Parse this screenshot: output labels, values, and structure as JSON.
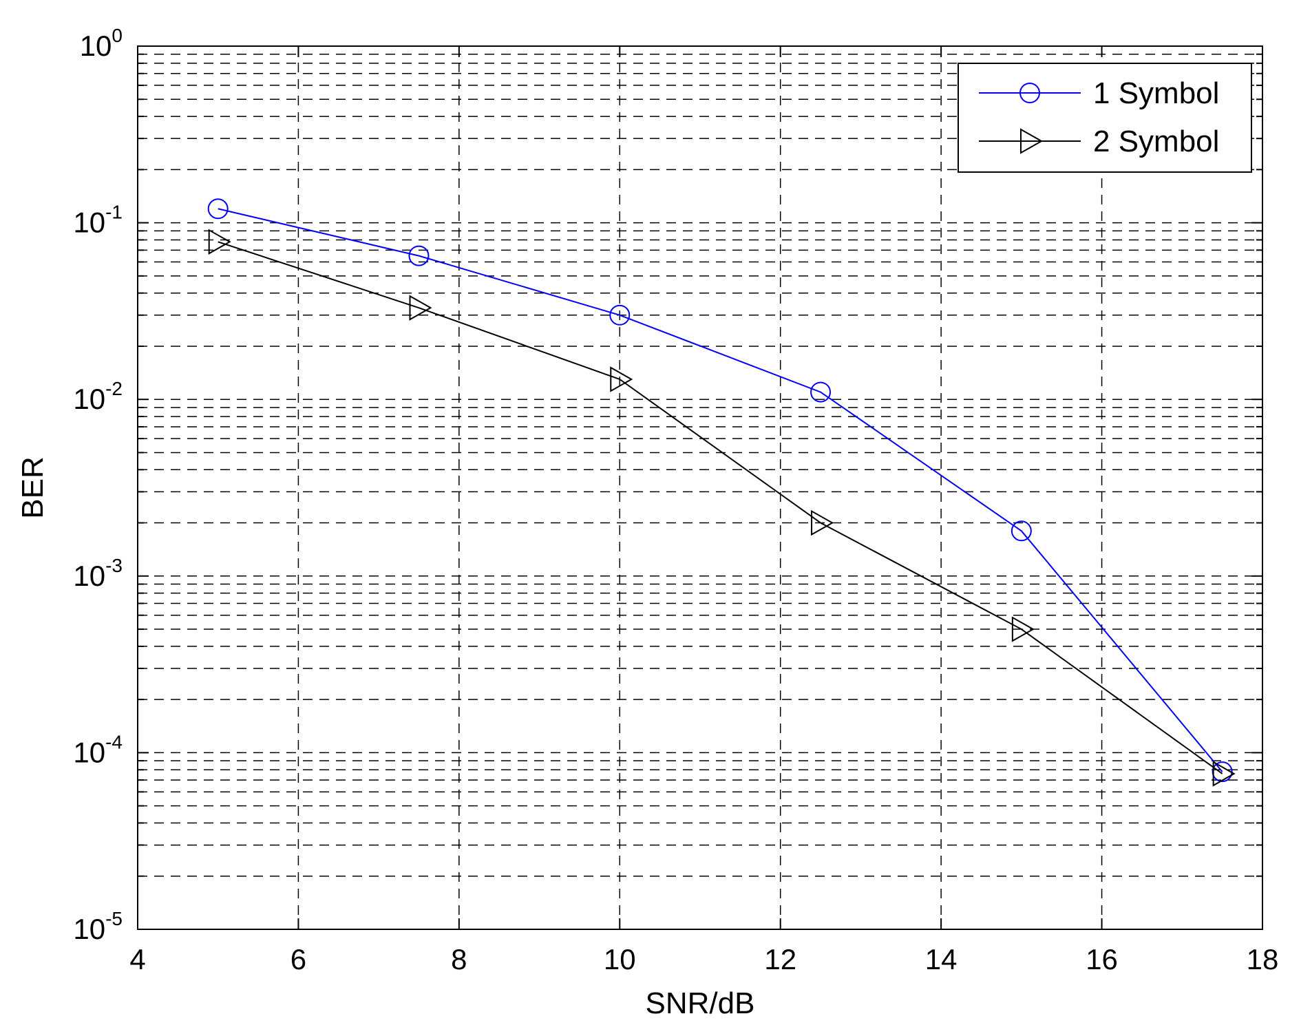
{
  "chart_data": {
    "type": "line",
    "title": "",
    "xlabel": "SNR/dB",
    "ylabel": "BER",
    "xlim": [
      4,
      18
    ],
    "ylim": [
      1e-05,
      1
    ],
    "yscale": "log",
    "grid": true,
    "grid_style": "dashed",
    "legend_position": "top-right",
    "x_ticks": [
      "4",
      "6",
      "8",
      "10",
      "12",
      "14",
      "16",
      "18"
    ],
    "y_ticks": [
      {
        "base": "10",
        "exp": "0"
      },
      {
        "base": "10",
        "exp": "-1"
      },
      {
        "base": "10",
        "exp": "-2"
      },
      {
        "base": "10",
        "exp": "-3"
      },
      {
        "base": "10",
        "exp": "-4"
      },
      {
        "base": "10",
        "exp": "-5"
      }
    ],
    "series": [
      {
        "name": "1 Symbol",
        "color": "#0000ff",
        "marker": "circle",
        "x": [
          5,
          7.5,
          10,
          12.5,
          15,
          17.5
        ],
        "y": [
          0.12,
          0.065,
          0.03,
          0.011,
          0.0018,
          7.8e-05
        ]
      },
      {
        "name": "2 Symbol",
        "color": "#000000",
        "marker": "triangle-right",
        "x": [
          5,
          7.5,
          10,
          12.5,
          15,
          17.5
        ],
        "y": [
          0.078,
          0.033,
          0.013,
          0.002,
          0.0005,
          7.6e-05
        ]
      }
    ]
  }
}
